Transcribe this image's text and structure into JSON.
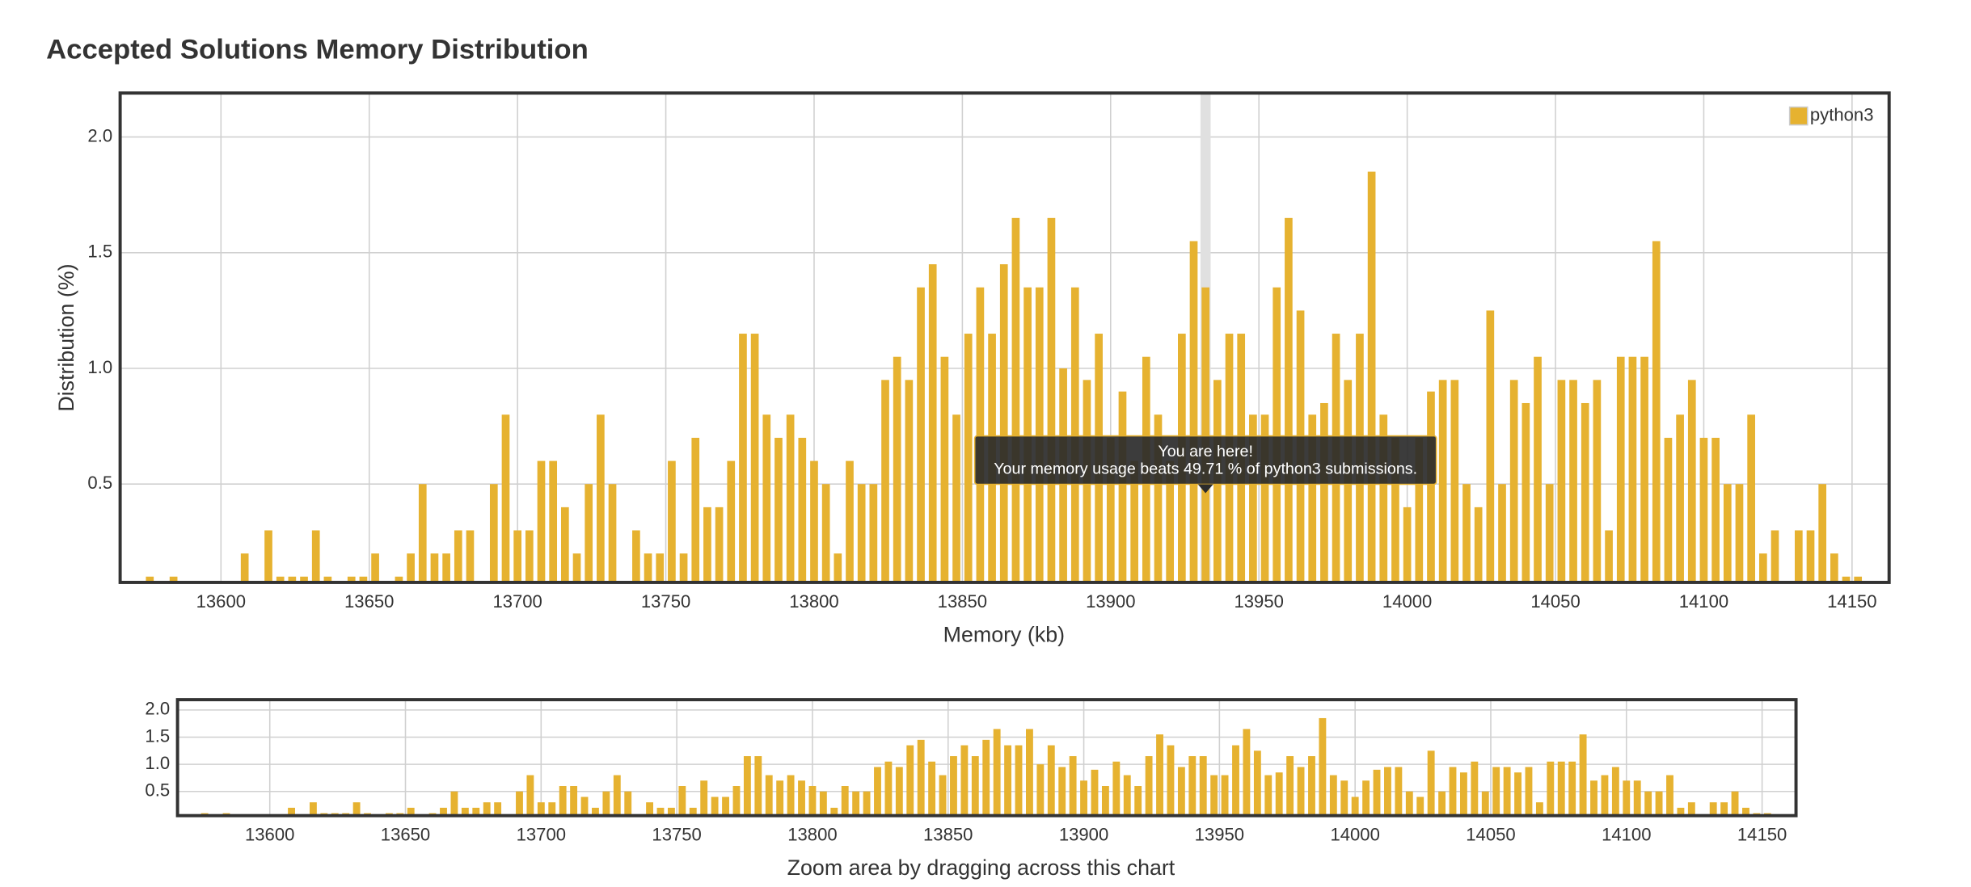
{
  "chart_data": {
    "type": "bar",
    "title": "Accepted Solutions Memory Distribution",
    "x_label": "Memory (kb)",
    "y_label": "Distribution (%)",
    "color": "#e6b230",
    "grid": true,
    "legend": "top-right",
    "xlim": [
      13566,
      14162.5
    ],
    "ylim": [
      0.075,
      2.19
    ],
    "xticks": [
      13600,
      13650,
      13700,
      13750,
      13800,
      13850,
      13900,
      13950,
      14000,
      14050,
      14100,
      14150
    ],
    "yticks": [
      0.5,
      {
        "value": 1,
        "label": "1.0"
      },
      1.5,
      {
        "value": 2,
        "label": "2.0"
      }
    ],
    "highlight": 13932,
    "annotations": [
      "You are here!",
      "Your memory usage beats 49.71 % of python3 submissions."
    ],
    "navigator": {
      "ylim": [
        0.055,
        2.19
      ],
      "yticks": [
        0.5,
        {
          "value": 1,
          "label": "1.0"
        },
        1.5,
        {
          "value": 2,
          "label": "2.0"
        }
      ],
      "caption": "Zoom area by dragging across this chart"
    },
    "series": [
      {
        "name": "python3",
        "color": "#e6b230",
        "x": [
          13576,
          13584,
          13608,
          13616,
          13620,
          13624,
          13628,
          13632,
          13636,
          13644,
          13648,
          13652,
          13660,
          13664,
          13668,
          13672,
          13676,
          13680,
          13684,
          13692,
          13696,
          13700,
          13704,
          13708,
          13712,
          13716,
          13720,
          13724,
          13728,
          13732,
          13740,
          13744,
          13748,
          13752,
          13756,
          13760,
          13764,
          13768,
          13772,
          13776,
          13780,
          13784,
          13788,
          13792,
          13796,
          13800,
          13804,
          13808,
          13812,
          13816,
          13820,
          13824,
          13828,
          13832,
          13836,
          13840,
          13844,
          13848,
          13852,
          13856,
          13860,
          13864,
          13868,
          13872,
          13876,
          13880,
          13884,
          13888,
          13892,
          13896,
          13900,
          13904,
          13908,
          13912,
          13916,
          13920,
          13924,
          13928,
          13932,
          13936,
          13940,
          13944,
          13948,
          13952,
          13956,
          13960,
          13964,
          13968,
          13972,
          13976,
          13980,
          13984,
          13988,
          13992,
          13996,
          14000,
          14004,
          14008,
          14012,
          14016,
          14020,
          14024,
          14028,
          14032,
          14036,
          14040,
          14044,
          14048,
          14052,
          14056,
          14060,
          14064,
          14068,
          14072,
          14076,
          14080,
          14084,
          14088,
          14092,
          14096,
          14100,
          14104,
          14108,
          14112,
          14116,
          14120,
          14124,
          14132,
          14136,
          14140,
          14144,
          14148,
          14152
        ],
        "values": [
          0.1,
          0.1,
          0.2,
          0.3,
          0.1,
          0.1,
          0.1,
          0.3,
          0.1,
          0.1,
          0.1,
          0.2,
          0.1,
          0.2,
          0.5,
          0.2,
          0.2,
          0.3,
          0.3,
          0.5,
          0.8,
          0.3,
          0.3,
          0.6,
          0.6,
          0.4,
          0.2,
          0.5,
          0.8,
          0.5,
          0.3,
          0.2,
          0.2,
          0.6,
          0.2,
          0.7,
          0.4,
          0.4,
          0.6,
          1.15,
          1.15,
          0.8,
          0.7,
          0.8,
          0.7,
          0.6,
          0.5,
          0.2,
          0.6,
          0.5,
          0.5,
          0.95,
          1.05,
          0.95,
          1.35,
          1.45,
          1.05,
          0.8,
          1.15,
          1.35,
          1.15,
          1.45,
          1.65,
          1.35,
          1.35,
          1.65,
          1.0,
          1.35,
          0.95,
          1.15,
          0.7,
          0.9,
          0.6,
          1.05,
          0.8,
          0.6,
          1.15,
          1.55,
          1.35,
          0.95,
          1.15,
          1.15,
          0.8,
          0.8,
          1.35,
          1.65,
          1.25,
          0.8,
          0.85,
          1.15,
          0.95,
          1.15,
          1.85,
          0.8,
          0.7,
          0.4,
          0.7,
          0.9,
          0.95,
          0.95,
          0.5,
          0.4,
          1.25,
          0.5,
          0.95,
          0.85,
          1.05,
          0.5,
          0.95,
          0.95,
          0.85,
          0.95,
          0.3,
          1.05,
          1.05,
          1.05,
          1.55,
          0.7,
          0.8,
          0.95,
          0.7,
          0.7,
          0.5,
          0.5,
          0.8,
          0.2,
          0.3,
          0.3,
          0.3,
          0.5,
          0.2,
          0.1,
          0.1
        ]
      }
    ]
  }
}
